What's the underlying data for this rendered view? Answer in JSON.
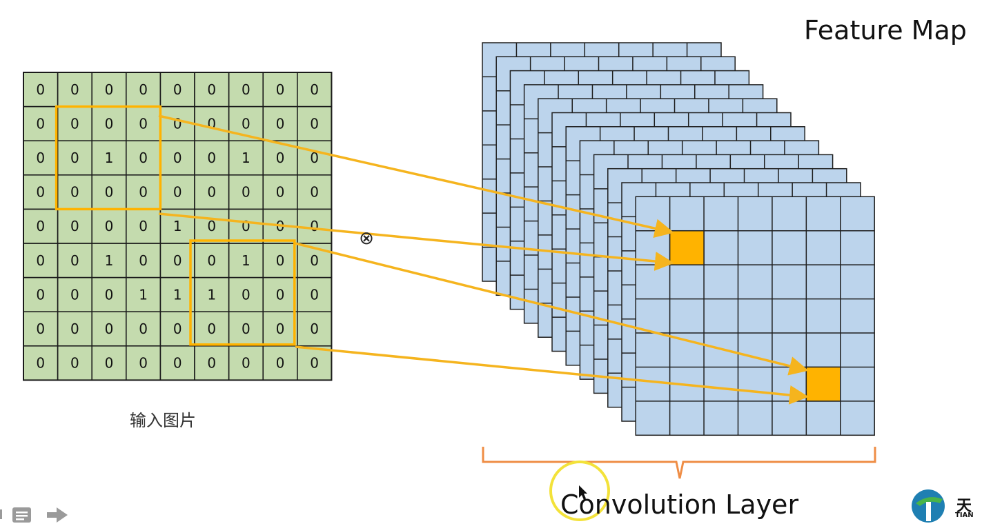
{
  "title": "Feature Map",
  "input_label": "输入图片",
  "conv_label": "Convolution Layer",
  "operator_symbol": "⊗",
  "input_grid": [
    [
      "0",
      "0",
      "0",
      "0",
      "0",
      "0",
      "0",
      "0",
      "0"
    ],
    [
      "0",
      "0",
      "0",
      "0",
      "0",
      "0",
      "0",
      "0",
      "0"
    ],
    [
      "0",
      "0",
      "1",
      "0",
      "0",
      "0",
      "1",
      "0",
      "0"
    ],
    [
      "0",
      "0",
      "0",
      "0",
      "0",
      "0",
      "0",
      "0",
      "0"
    ],
    [
      "0",
      "0",
      "0",
      "0",
      "1",
      "0",
      "0",
      "0",
      "0"
    ],
    [
      "0",
      "0",
      "1",
      "0",
      "0",
      "0",
      "1",
      "0",
      "0"
    ],
    [
      "0",
      "0",
      "0",
      "1",
      "1",
      "1",
      "0",
      "0",
      "0"
    ],
    [
      "0",
      "0",
      "0",
      "0",
      "0",
      "0",
      "0",
      "0",
      "0"
    ],
    [
      "0",
      "0",
      "0",
      "0",
      "0",
      "0",
      "0",
      "0",
      "0"
    ]
  ],
  "logo": {
    "cn": "天",
    "en": "TIAN"
  },
  "colors": {
    "input_cell": "#c4dbae",
    "feature_cell": "#bcd4ec",
    "highlight": "#ffb300",
    "arrow": "#f5b41e",
    "bracket": "#ef8d45"
  },
  "icons": {
    "menu": "notes-icon",
    "next": "next-arrow-icon",
    "cursor": "mouse-pointer-icon"
  }
}
